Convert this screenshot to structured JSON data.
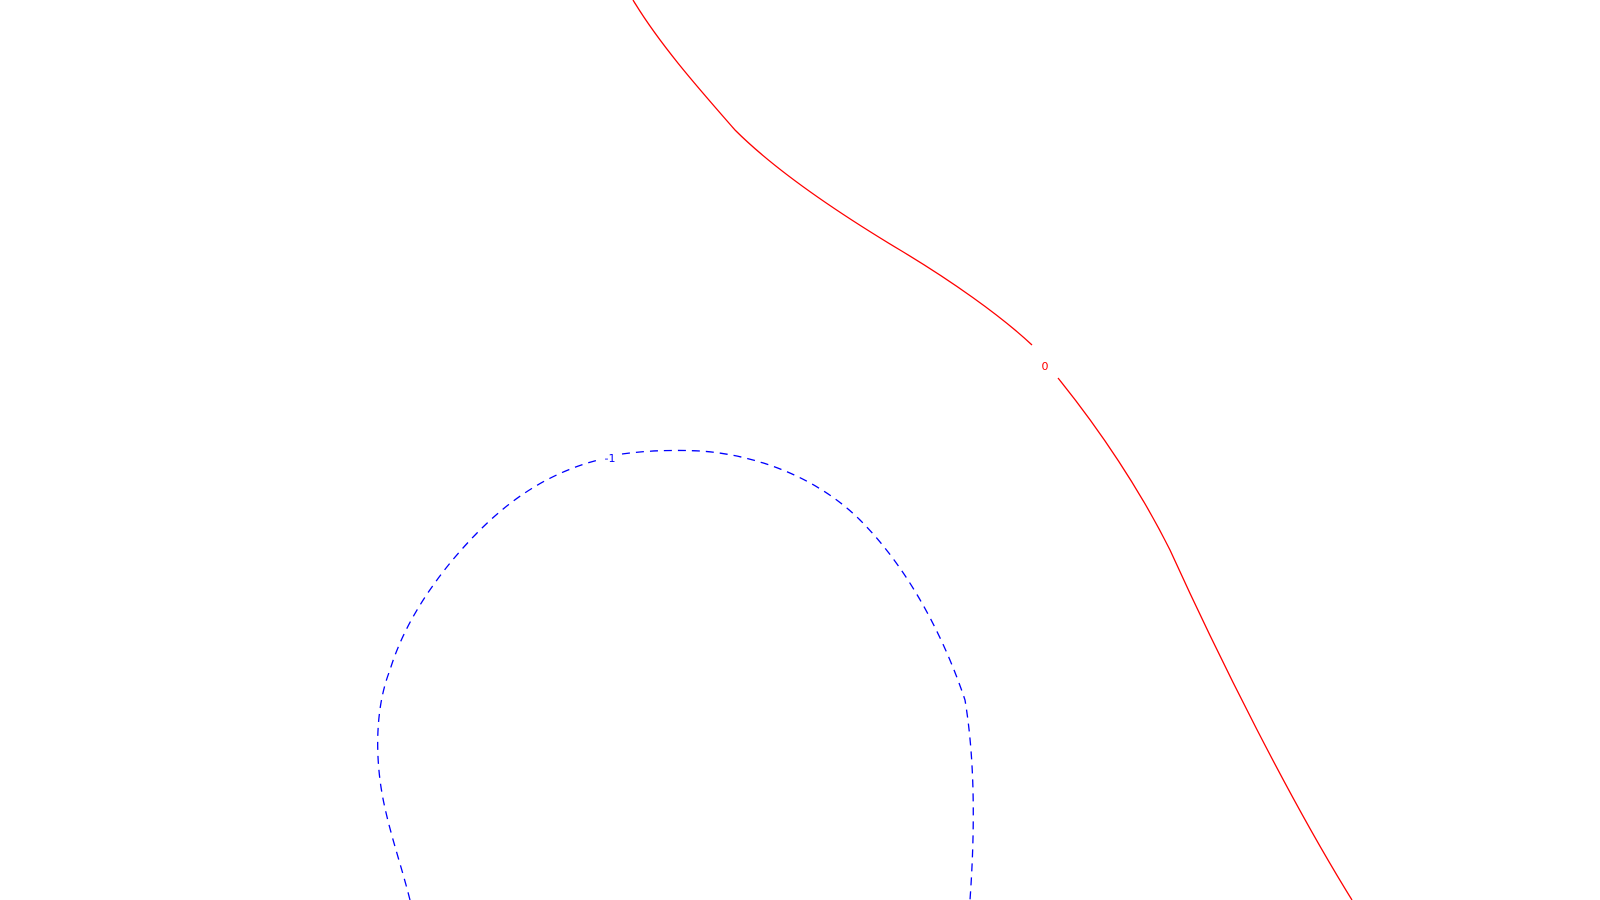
{
  "contours": [
    {
      "id": "zero",
      "label": "0",
      "color": "#ff0000",
      "style": "solid"
    },
    {
      "id": "minus-one",
      "label": "-1",
      "color": "#0000ff",
      "style": "dashed"
    }
  ]
}
